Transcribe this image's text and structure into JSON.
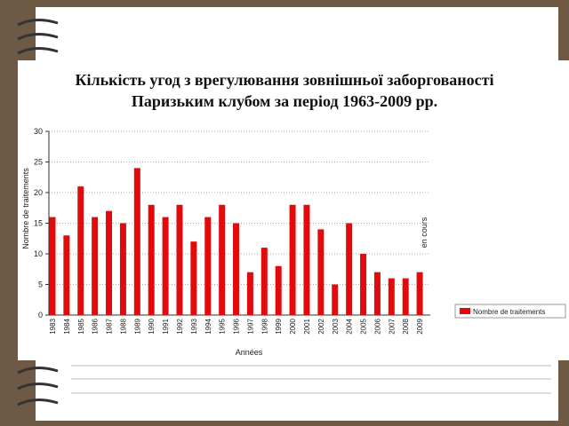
{
  "chart_data": {
    "type": "bar",
    "title": "Кількість угод з врегулювання зовнішньої заборгованості Паризьким клубом за період 1963-2009 рр.",
    "x_label": "Années",
    "y_label": "Nombre de traitements",
    "annotation": "en cours",
    "categories": [
      "1983",
      "1984",
      "1985",
      "1986",
      "1987",
      "1988",
      "1989",
      "1990",
      "1991",
      "1992",
      "1993",
      "1994",
      "1995",
      "1996",
      "1997",
      "1998",
      "1999",
      "2000",
      "2001",
      "2002",
      "2003",
      "2004",
      "2005",
      "2006",
      "2007",
      "2008",
      "2009"
    ],
    "series": [
      {
        "name": "Nombre de traitements",
        "color": "#e20a0a",
        "values": [
          16,
          13,
          21,
          16,
          17,
          15,
          24,
          18,
          16,
          18,
          12,
          16,
          18,
          15,
          7,
          11,
          8,
          18,
          18,
          14,
          5,
          15,
          10,
          7,
          6,
          6,
          7
        ]
      }
    ],
    "ylim": [
      0,
      30
    ],
    "yticks": [
      0,
      5,
      10,
      15,
      20,
      25,
      30
    ],
    "grid": true,
    "legend": "right"
  }
}
